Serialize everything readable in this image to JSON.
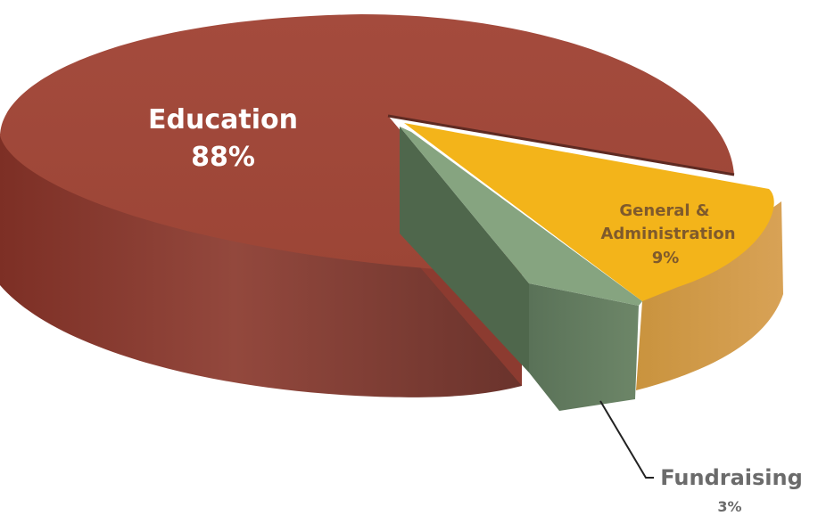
{
  "chart_data": {
    "type": "pie",
    "style": "3d-exploded",
    "slices": [
      {
        "category": "Education",
        "value": 88,
        "value_label": "88%",
        "color": "#A0483A"
      },
      {
        "category": "General & Administration",
        "category_lines": [
          "General &",
          "Administration"
        ],
        "value": 9,
        "value_label": "9%",
        "color": "#F3B41A"
      },
      {
        "category": "Fundraising",
        "value": 3,
        "value_label": "3%",
        "color": "#86A480"
      }
    ]
  }
}
